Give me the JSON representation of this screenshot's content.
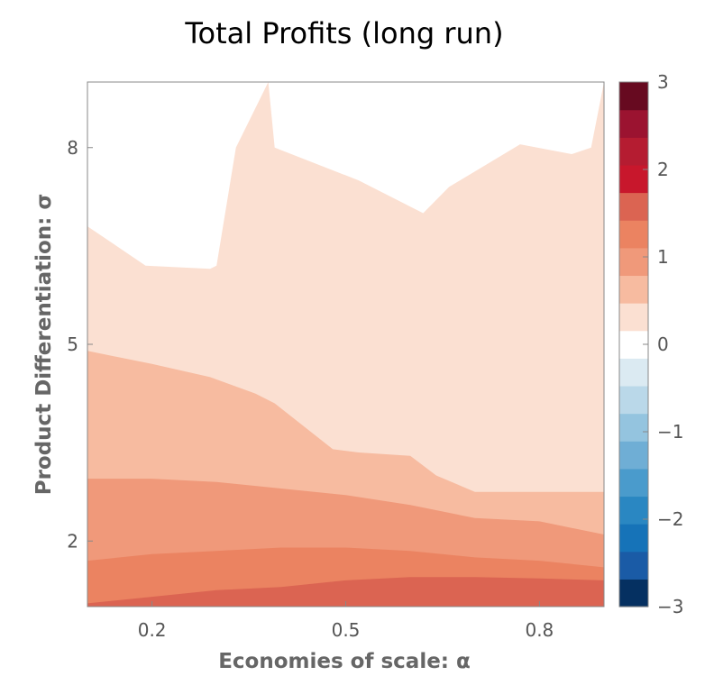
{
  "chart_data": {
    "type": "contour",
    "title": "Total Profits (long run)",
    "xlabel": "Economies of scale: α",
    "ylabel": "Product Differentiation: σ",
    "xlim": [
      0.1,
      0.9
    ],
    "ylim": [
      1.0,
      9.0
    ],
    "x_ticks": [
      "0.2",
      "0.5",
      "0.8"
    ],
    "x_tick_values": [
      0.2,
      0.5,
      0.8
    ],
    "y_ticks": [
      "2",
      "5",
      "8"
    ],
    "y_tick_values": [
      2,
      5,
      8
    ],
    "colorbar": {
      "range": [
        -3,
        3
      ],
      "ticks": [
        "3",
        "2",
        "1",
        "0",
        "−1",
        "−2",
        "−3"
      ],
      "tick_values": [
        3,
        2,
        1,
        0,
        -1,
        -2,
        -3
      ],
      "levels": [
        -3,
        -2.6,
        -2.2,
        -1.8,
        -1.4,
        -1.0,
        -0.6,
        -0.2,
        0.2,
        0.6,
        1.0,
        1.4,
        1.8,
        2.2,
        2.6,
        3.0
      ],
      "colors": [
        "#053061",
        "#1a5ba6",
        "#1673b8",
        "#2a87c2",
        "#4a9bcc",
        "#6faed5",
        "#94c4df",
        "#bad8e9",
        "#dbeaf2",
        "#ffffff",
        "#fbe0d2",
        "#f7bba0",
        "#f0997a",
        "#eb8361",
        "#db6452",
        "#c8172c",
        "#b51c31",
        "#9b1330",
        "#670a20"
      ]
    },
    "contour_bands": [
      {
        "level_range": [
          0.2,
          0.6
        ],
        "color": "#fbe0d2",
        "upper_boundary": [
          [
            0.1,
            6.8
          ],
          [
            0.19,
            6.2
          ],
          [
            0.29,
            6.15
          ],
          [
            0.3,
            6.2
          ],
          [
            0.33,
            8.0
          ],
          [
            0.38,
            9.0
          ],
          [
            0.39,
            8.0
          ],
          [
            0.52,
            7.5
          ],
          [
            0.62,
            7.0
          ],
          [
            0.66,
            7.4
          ],
          [
            0.77,
            8.05
          ],
          [
            0.85,
            7.9
          ],
          [
            0.88,
            8.0
          ],
          [
            0.9,
            9.0
          ]
        ]
      },
      {
        "level_range": [
          0.6,
          1.0
        ],
        "color": "#f7bba0",
        "upper_boundary": [
          [
            0.1,
            4.9
          ],
          [
            0.2,
            4.7
          ],
          [
            0.29,
            4.5
          ],
          [
            0.36,
            4.25
          ],
          [
            0.39,
            4.1
          ],
          [
            0.48,
            3.4
          ],
          [
            0.52,
            3.35
          ],
          [
            0.6,
            3.3
          ],
          [
            0.64,
            3.0
          ],
          [
            0.7,
            2.75
          ],
          [
            0.8,
            2.75
          ],
          [
            0.9,
            2.75
          ]
        ]
      },
      {
        "level_range": [
          1.0,
          1.4
        ],
        "color": "#f0997a",
        "upper_boundary": [
          [
            0.1,
            2.95
          ],
          [
            0.2,
            2.95
          ],
          [
            0.3,
            2.9
          ],
          [
            0.4,
            2.8
          ],
          [
            0.5,
            2.7
          ],
          [
            0.6,
            2.55
          ],
          [
            0.7,
            2.35
          ],
          [
            0.8,
            2.3
          ],
          [
            0.9,
            2.1
          ]
        ]
      },
      {
        "level_range": [
          1.4,
          1.8
        ],
        "color": "#eb8361",
        "upper_boundary": [
          [
            0.1,
            1.7
          ],
          [
            0.2,
            1.8
          ],
          [
            0.3,
            1.85
          ],
          [
            0.4,
            1.9
          ],
          [
            0.5,
            1.9
          ],
          [
            0.6,
            1.85
          ],
          [
            0.7,
            1.75
          ],
          [
            0.8,
            1.7
          ],
          [
            0.9,
            1.6
          ]
        ]
      },
      {
        "level_range": [
          1.8,
          2.2
        ],
        "color": "#db6452",
        "upper_boundary": [
          [
            0.1,
            1.05
          ],
          [
            0.2,
            1.15
          ],
          [
            0.3,
            1.25
          ],
          [
            0.4,
            1.3
          ],
          [
            0.5,
            1.4
          ],
          [
            0.6,
            1.45
          ],
          [
            0.7,
            1.45
          ],
          [
            0.8,
            1.43
          ],
          [
            0.9,
            1.4
          ]
        ]
      }
    ],
    "legend": "colorbar-right",
    "grid": false
  }
}
